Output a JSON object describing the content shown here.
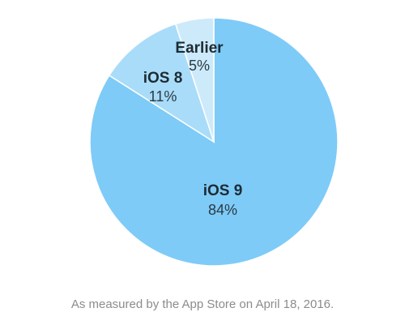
{
  "chart_data": {
    "type": "pie",
    "categories": [
      "iOS 9",
      "iOS 8",
      "Earlier"
    ],
    "values": [
      84,
      11,
      5
    ],
    "value_labels": [
      "84%",
      "11%",
      "5%"
    ],
    "colors": [
      "#7ecbf7",
      "#a9dcf9",
      "#cdeafb"
    ],
    "start": "12 o'clock",
    "direction": "clockwise",
    "title": "",
    "legend": "none"
  },
  "caption": "As measured by the App Store on April 18, 2016."
}
